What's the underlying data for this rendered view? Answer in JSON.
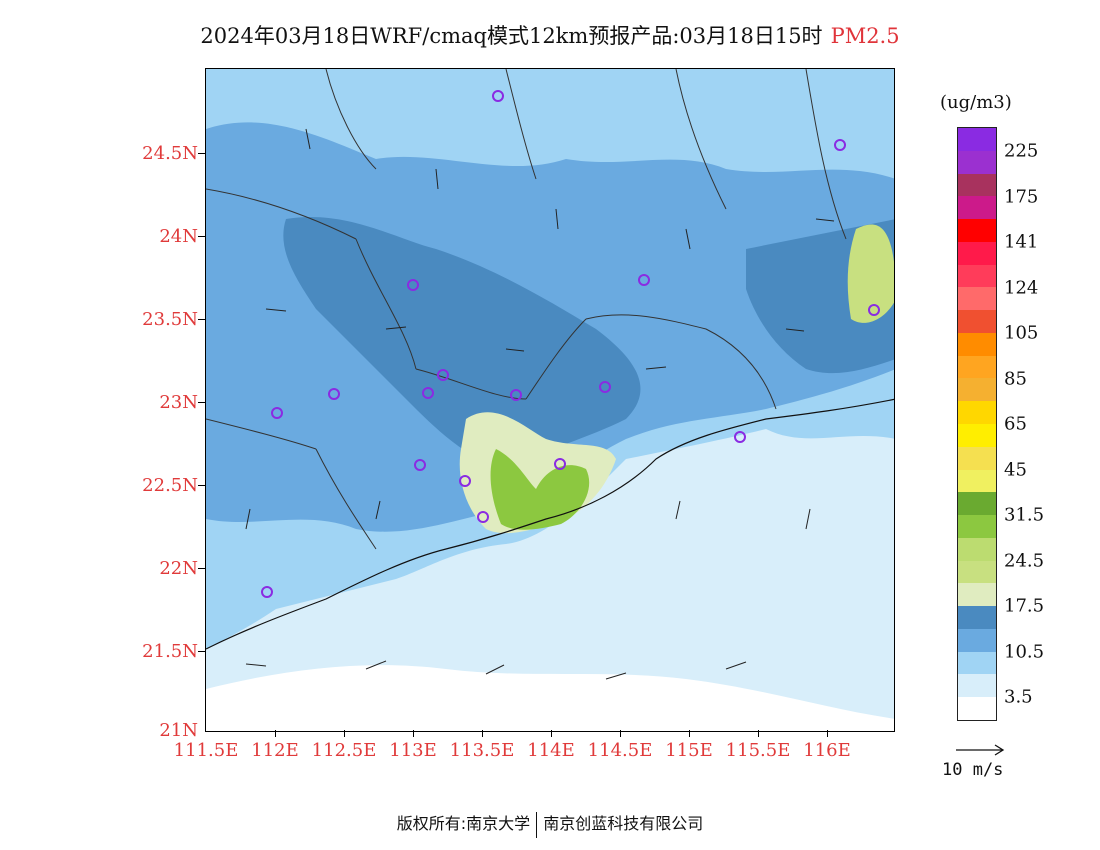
{
  "header": {
    "title": "2024年03月18日WRF/cmaq模式12km预报产品:03月18日15时",
    "pollutant": "PM2.5"
  },
  "axes": {
    "y_labels": [
      "24.5N",
      "24N",
      "23.5N",
      "23N",
      "22.5N",
      "22N",
      "21.5N",
      "21N"
    ],
    "x_labels": [
      "111.5E",
      "112E",
      "112.5E",
      "113E",
      "113.5E",
      "114E",
      "114.5E",
      "115E",
      "115.5E",
      "116E"
    ]
  },
  "legend": {
    "unit": "(ug/m3)",
    "labels": [
      "225",
      "175",
      "141",
      "124",
      "105",
      "85",
      "65",
      "45",
      "31.5",
      "24.5",
      "17.5",
      "10.5",
      "3.5"
    ],
    "colors": [
      "#8a2be2",
      "#9b30d0",
      "#a8325e",
      "#cc1a8a",
      "#ff0000",
      "#ff1a4a",
      "#ff3c5a",
      "#ff6a6a",
      "#f05030",
      "#ff8c00",
      "#ffa520",
      "#f5b030",
      "#ffd700",
      "#ffee00",
      "#f5e050",
      "#f0f060",
      "#6aaa30",
      "#8cc840",
      "#bcdc70",
      "#c8e080",
      "#e0ecc0",
      "#4a8ac0",
      "#6aaae0",
      "#a0d4f4",
      "#d8eefa",
      "#ffffff"
    ]
  },
  "wind_reference": {
    "label": "10 m/s"
  },
  "footer": {
    "copyright_left": "版权所有:南京大学",
    "copyright_right": "南京创蓝科技有限公司"
  }
}
